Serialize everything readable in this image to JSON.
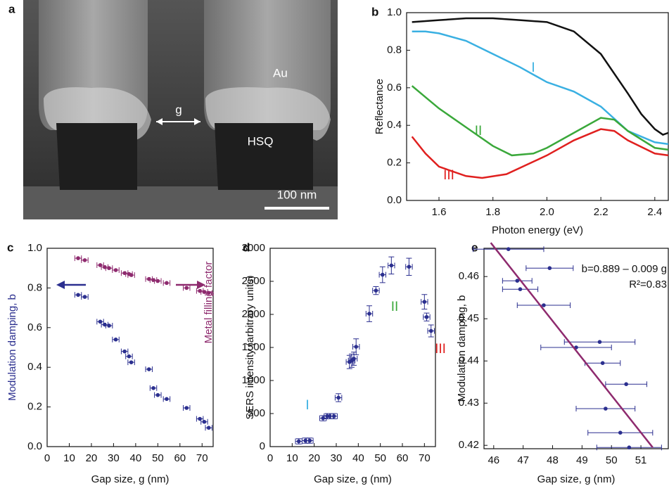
{
  "image": {
    "panel_label": "a",
    "au_label": "Au",
    "gap_label": "g",
    "hsq_label": "HSQ",
    "scale_bar": "100 nm"
  },
  "chart_data": [
    {
      "panel_label": "b",
      "type": "line",
      "xlabel": "Photon energy (eV)",
      "ylabel": "Reflectance",
      "xlim": [
        1.48,
        2.45
      ],
      "ylim": [
        0,
        1
      ],
      "xticks": [
        1.6,
        1.8,
        {
          "value": 2,
          "label": "2.0"
        },
        2.2,
        2.4
      ],
      "yticks": [
        {
          "value": 0,
          "label": "0.0"
        },
        0.2,
        0.4,
        0.6,
        0.8,
        {
          "value": 1,
          "label": "1.0"
        }
      ],
      "series": [
        {
          "color": "#111111",
          "x": [
            1.5,
            1.6,
            1.7,
            1.8,
            1.9,
            2.0,
            2.1,
            2.2,
            2.3,
            2.35,
            2.4,
            2.43,
            2.45
          ],
          "values": [
            0.95,
            0.96,
            0.97,
            0.97,
            0.96,
            0.95,
            0.9,
            0.78,
            0.57,
            0.46,
            0.38,
            0.35,
            0.36
          ]
        },
        {
          "color": "#3ab0e2",
          "x": [
            1.5,
            1.55,
            1.6,
            1.7,
            1.8,
            1.9,
            2.0,
            2.1,
            2.2,
            2.3,
            2.4,
            2.45
          ],
          "values": [
            0.9,
            0.9,
            0.89,
            0.85,
            0.78,
            0.71,
            0.63,
            0.58,
            0.5,
            0.37,
            0.31,
            0.3
          ]
        },
        {
          "color": "#3aa83a",
          "x": [
            1.5,
            1.55,
            1.6,
            1.7,
            1.8,
            1.87,
            1.95,
            2.0,
            2.1,
            2.2,
            2.25,
            2.3,
            2.4,
            2.45
          ],
          "values": [
            0.61,
            0.55,
            0.49,
            0.39,
            0.29,
            0.24,
            0.25,
            0.28,
            0.36,
            0.44,
            0.43,
            0.37,
            0.28,
            0.27
          ]
        },
        {
          "color": "#e0201f",
          "x": [
            1.5,
            1.55,
            1.6,
            1.7,
            1.76,
            1.85,
            2.0,
            2.1,
            2.2,
            2.25,
            2.3,
            2.4,
            2.45
          ],
          "values": [
            0.34,
            0.25,
            0.18,
            0.13,
            0.12,
            0.14,
            0.24,
            0.32,
            0.38,
            0.37,
            0.32,
            0.25,
            0.24
          ]
        }
      ],
      "annotations": [
        {
          "text": "I",
          "color": "#3ab0e2"
        },
        {
          "text": "II",
          "color": "#3aa83a"
        },
        {
          "text": "III",
          "color": "#e0201f"
        }
      ]
    },
    {
      "panel_label": "c",
      "type": "scatter",
      "xlabel": "Gap size, g (nm)",
      "ylabel": "Modulation damping, b",
      "y2label": "Metal filling factor",
      "xlim": [
        0,
        75
      ],
      "ylim": [
        0,
        1
      ],
      "y2lim": [
        0,
        1
      ],
      "xticks": [
        0,
        10,
        20,
        30,
        40,
        50,
        60,
        70
      ],
      "yticks": [
        {
          "value": 0,
          "label": "0.0"
        },
        0.2,
        0.4,
        0.6,
        0.8,
        {
          "value": 1,
          "label": "1.0"
        }
      ],
      "series": [
        {
          "color": "#2b2f8f",
          "xerr": 1.5,
          "x": [
            14,
            17,
            24,
            26,
            28,
            31,
            35,
            37,
            38,
            46,
            48,
            50,
            54,
            63,
            69,
            71,
            73
          ],
          "values": [
            0.765,
            0.755,
            0.63,
            0.615,
            0.61,
            0.54,
            0.48,
            0.455,
            0.425,
            0.39,
            0.295,
            0.26,
            0.24,
            0.195,
            0.14,
            0.125,
            0.095
          ]
        },
        {
          "color": "#8e2a6e",
          "axis": "y2",
          "xerr": 1.5,
          "x": [
            14,
            17,
            24,
            26,
            28,
            31,
            35,
            37,
            38,
            46,
            48,
            50,
            54,
            63,
            69,
            71,
            73
          ],
          "values": [
            0.95,
            0.94,
            0.915,
            0.905,
            0.9,
            0.89,
            0.875,
            0.87,
            0.865,
            0.845,
            0.84,
            0.835,
            0.825,
            0.8,
            0.785,
            0.78,
            0.775
          ]
        }
      ]
    },
    {
      "panel_label": "d",
      "type": "scatter",
      "xlabel": "Gap size, g (nm)",
      "ylabel": "SERS intensity (arbitrary units)",
      "xlim": [
        0,
        75
      ],
      "ylim": [
        0,
        3000
      ],
      "xticks": [
        0,
        10,
        20,
        30,
        40,
        50,
        60,
        70
      ],
      "yticks": [
        0,
        500,
        1000,
        1500,
        2000,
        2500,
        3000
      ],
      "series": [
        {
          "color": "#2b2f8f",
          "xerr": 1.5,
          "x": [
            13,
            16,
            18,
            24,
            26,
            27,
            29,
            31,
            36,
            37,
            38,
            39,
            45,
            48,
            51,
            55,
            63,
            70,
            71,
            73
          ],
          "values": [
            80,
            90,
            90,
            430,
            460,
            460,
            460,
            740,
            1280,
            1300,
            1330,
            1510,
            2010,
            2360,
            2600,
            2740,
            2720,
            2190,
            1960,
            1750
          ],
          "yerr": [
            40,
            40,
            40,
            40,
            40,
            40,
            40,
            60,
            100,
            100,
            100,
            120,
            120,
            60,
            120,
            130,
            130,
            110,
            60,
            90
          ]
        }
      ],
      "annotations": [
        {
          "text": "I",
          "color": "#3ab0e2"
        },
        {
          "text": "II",
          "color": "#3aa83a"
        },
        {
          "text": "III",
          "color": "#e0201f"
        }
      ]
    },
    {
      "panel_label": "e",
      "type": "scatter",
      "xlabel": "Gap size, g (nm)",
      "ylabel": "Modulation damping, b",
      "xlim": [
        45.67,
        51.93
      ],
      "ylim": [
        0.4192,
        0.4667
      ],
      "xticks": [
        46,
        47,
        48,
        49,
        50,
        51
      ],
      "yticks": [
        0.42,
        0.43,
        0.44,
        0.45,
        0.46
      ],
      "series": [
        {
          "color": "#2b2f8f",
          "x": [
            46.5,
            47.9,
            46.8,
            46.9,
            47.7,
            49.6,
            48.8,
            49.7,
            50.5,
            49.8,
            50.3,
            50.6
          ],
          "values": [
            0.4665,
            0.462,
            0.459,
            0.457,
            0.4532,
            0.4445,
            0.4432,
            0.4395,
            0.4345,
            0.4287,
            0.423,
            0.4195
          ],
          "xerr": [
            1.2,
            0.8,
            0.5,
            0.6,
            0.9,
            1.2,
            1.2,
            0.6,
            0.7,
            1.0,
            1.1,
            1.1
          ]
        }
      ],
      "fit": {
        "color": "#8e2a6e",
        "x": [
          45.9,
          51.4
        ],
        "values": [
          0.468,
          0.4195
        ]
      },
      "annotations": [
        {
          "text": "b=0.889 – 0.009 g",
          "color": "#111111"
        },
        {
          "text": "R²=0.83",
          "color": "#111111"
        }
      ]
    }
  ]
}
